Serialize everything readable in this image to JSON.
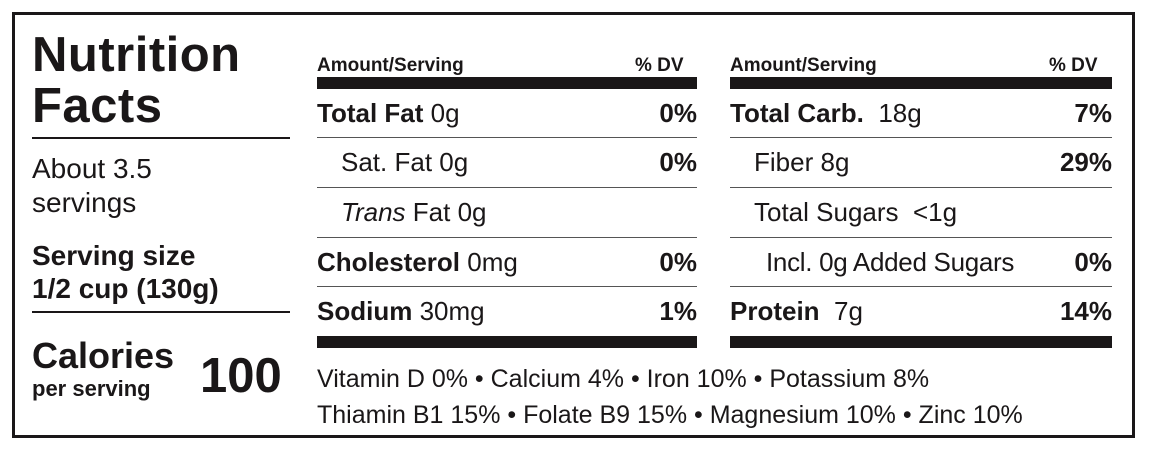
{
  "title_line1": "Nutrition",
  "title_line2": "Facts",
  "servings_line1": "About 3.5",
  "servings_line2": "servings",
  "serving_size_label": "Serving size",
  "serving_size_value": "1/2 cup  (130g)",
  "calories_label": "Calories",
  "calories_sub": "per serving",
  "calories_value": "100",
  "left_table": {
    "header_amount": "Amount/Serving",
    "header_dv": "% DV",
    "rows": [
      {
        "name": "Total Fat",
        "amount": "0g",
        "dv": "0%"
      },
      {
        "name": "Sat. Fat",
        "amount": "0g",
        "dv": "0%"
      },
      {
        "name": "Trans",
        "name_rest": "Fat",
        "amount": "0g",
        "dv": ""
      },
      {
        "name": "Cholesterol",
        "amount": "0mg",
        "dv": "0%"
      },
      {
        "name": "Sodium",
        "amount": "30mg",
        "dv": "1%"
      }
    ]
  },
  "right_table": {
    "header_amount": "Amount/Serving",
    "header_dv": "% DV",
    "rows": [
      {
        "name": "Total Carb.",
        "amount": "18g",
        "dv": "7%"
      },
      {
        "name": "Fiber",
        "amount": "8g",
        "dv": "29%"
      },
      {
        "name": "Total Sugars",
        "amount": "<1g",
        "dv": ""
      },
      {
        "name": "Incl. 0g Added Sugars",
        "amount": "",
        "dv": "0%"
      },
      {
        "name": "Protein",
        "amount": "7g",
        "dv": "14%"
      }
    ]
  },
  "footer_line1": "Vitamin D  0%  •  Calcium  4%  •  Iron  10%  •  Potassium  8%",
  "footer_line2": "Thiamin B1 15% • Folate B9  15% • Magnesium 10% • Zinc 10%"
}
